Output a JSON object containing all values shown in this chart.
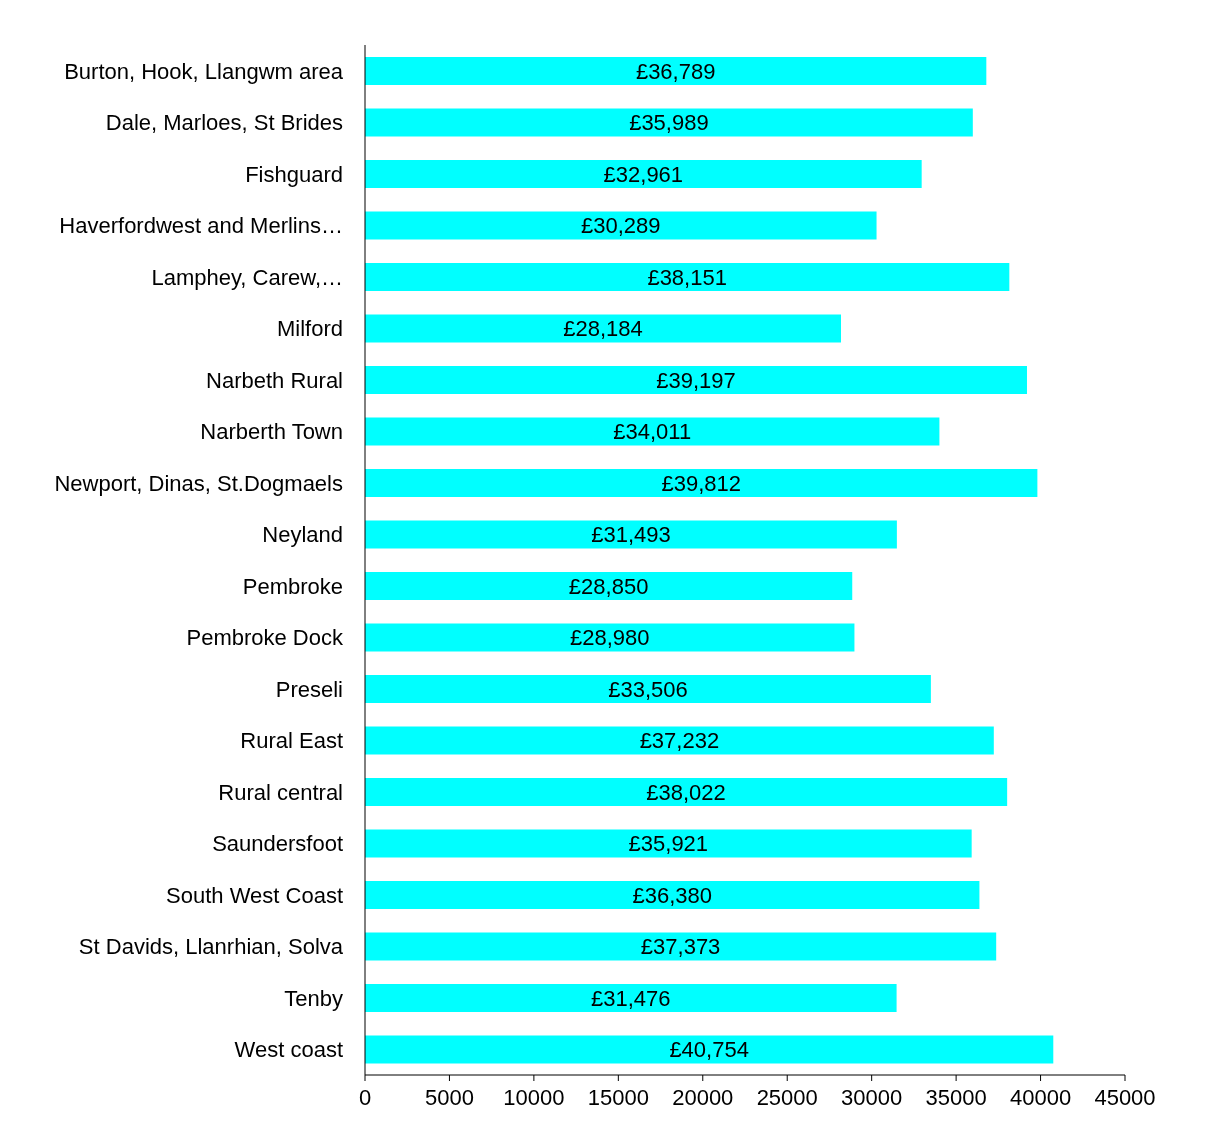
{
  "chart_data": {
    "type": "bar",
    "orientation": "horizontal",
    "categories": [
      "Burton, Hook, Llangwm area",
      "Dale, Marloes, St Brides",
      "Fishguard",
      "Haverfordwest and Merlins…",
      "Lamphey, Carew,…",
      "Milford",
      "Narbeth Rural",
      "Narberth Town",
      "Newport, Dinas, St.Dogmaels",
      "Neyland",
      "Pembroke",
      "Pembroke Dock",
      "Preseli",
      "Rural East",
      "Rural central",
      "Saundersfoot",
      "South West Coast",
      "St Davids, Llanrhian, Solva",
      "Tenby",
      "West coast"
    ],
    "values": [
      36789,
      35989,
      32961,
      30289,
      38151,
      28184,
      39197,
      34011,
      39812,
      31493,
      28850,
      28980,
      33506,
      37232,
      38022,
      35921,
      36380,
      37373,
      31476,
      40754
    ],
    "value_labels": [
      "£36,789",
      "£35,989",
      "£32,961",
      "£30,289",
      "£38,151",
      "£28,184",
      "£39,197",
      "£34,011",
      "£39,812",
      "£31,493",
      "£28,850",
      "£28,980",
      "£33,506",
      "£37,232",
      "£38,022",
      "£35,921",
      "£36,380",
      "£37,373",
      "£31,476",
      "£40,754"
    ],
    "color": "#00ffff",
    "xlim": [
      0,
      45000
    ],
    "xticks": [
      0,
      5000,
      10000,
      15000,
      20000,
      25000,
      30000,
      35000,
      40000,
      45000
    ],
    "grid": false,
    "legend": false
  }
}
